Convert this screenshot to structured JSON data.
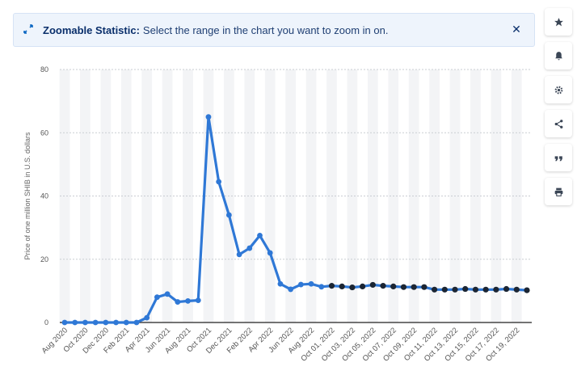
{
  "banner": {
    "icon": "zoom-expand-icon",
    "title": "Zoomable Statistic:",
    "text": "Select the range in the chart you want to zoom in on.",
    "close_icon": "close-icon"
  },
  "toolbar": [
    {
      "name": "favorite-button",
      "icon": "star-icon"
    },
    {
      "name": "notification-button",
      "icon": "bell-icon"
    },
    {
      "name": "settings-button",
      "icon": "gear-icon"
    },
    {
      "name": "share-button",
      "icon": "share-icon"
    },
    {
      "name": "cite-button",
      "icon": "quote-icon"
    },
    {
      "name": "print-button",
      "icon": "print-icon"
    }
  ],
  "chart_data": {
    "type": "line",
    "ylabel": "Price of one million SHIB in U.S. dollars",
    "ylim": [
      0,
      80
    ],
    "yticks": [
      0,
      20,
      40,
      60,
      80
    ],
    "grid": "horizontal dotted",
    "color": "#2f78d6",
    "marker_color_recent": "#1b2533",
    "x_tick_labels": [
      "Aug 2020",
      "Oct 2020",
      "Dec 2020",
      "Feb 2021",
      "Apr 2021",
      "Jun 2021",
      "Aug 2021",
      "Oct 2021",
      "Dec 2021",
      "Feb 2022",
      "Apr 2022",
      "Jun 2022",
      "Aug 2022",
      "Oct 01, 2022",
      "Oct 03, 2022",
      "Oct 05, 2022",
      "Oct 07, 2022",
      "Oct 09, 2022",
      "Oct 11, 2022",
      "Oct 13, 2022",
      "Oct 15, 2022",
      "Oct 17, 2022",
      "Oct 19, 2022"
    ],
    "x": [
      "Aug 2020",
      "Sep 2020",
      "Oct 2020",
      "Nov 2020",
      "Dec 2020",
      "Jan 2021",
      "Feb 2021",
      "Mar 2021",
      "Apr 2021",
      "May 2021",
      "Jun 2021",
      "Jul 2021",
      "Aug 2021",
      "Sep 2021",
      "Oct 2021",
      "Nov 2021",
      "Dec 2021",
      "Jan 2022",
      "Feb 2022",
      "Mar 2022",
      "Apr 2022",
      "May 2022",
      "Jun 2022",
      "Jul 2022",
      "Aug 2022",
      "Sep 2022",
      "Oct 01, 2022",
      "Oct 02, 2022",
      "Oct 03, 2022",
      "Oct 04, 2022",
      "Oct 05, 2022",
      "Oct 06, 2022",
      "Oct 07, 2022",
      "Oct 08, 2022",
      "Oct 09, 2022",
      "Oct 10, 2022",
      "Oct 11, 2022",
      "Oct 12, 2022",
      "Oct 13, 2022",
      "Oct 14, 2022",
      "Oct 15, 2022",
      "Oct 16, 2022",
      "Oct 17, 2022",
      "Oct 18, 2022",
      "Oct 19, 2022",
      "Oct 20, 2022"
    ],
    "values": [
      0.0,
      0.0,
      0.0,
      0.0,
      0.0,
      0.0,
      0.0,
      0.0,
      1.5,
      8.0,
      9.0,
      6.5,
      6.8,
      7.0,
      65.0,
      44.5,
      34.0,
      21.5,
      23.5,
      27.5,
      22.0,
      12.2,
      10.5,
      12.0,
      12.2,
      11.3,
      11.6,
      11.4,
      11.1,
      11.4,
      11.9,
      11.6,
      11.4,
      11.2,
      11.2,
      11.2,
      10.4,
      10.4,
      10.4,
      10.6,
      10.4,
      10.4,
      10.4,
      10.6,
      10.4,
      10.2
    ],
    "recent_from_index": 26
  }
}
